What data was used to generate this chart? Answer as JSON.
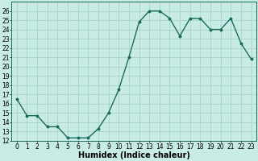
{
  "x": [
    0,
    1,
    2,
    3,
    4,
    5,
    6,
    7,
    8,
    9,
    10,
    11,
    12,
    13,
    14,
    15,
    16,
    17,
    18,
    19,
    20,
    21,
    22,
    23
  ],
  "y": [
    16.5,
    14.7,
    14.7,
    13.5,
    13.5,
    12.3,
    12.3,
    12.3,
    13.3,
    15.0,
    17.5,
    21.0,
    24.8,
    26.0,
    26.0,
    25.2,
    23.3,
    25.2,
    25.2,
    24.0,
    24.0,
    25.2,
    22.5,
    20.8
  ],
  "line_color": "#1a6b5a",
  "marker": "o",
  "markersize": 1.8,
  "linewidth": 1.0,
  "bg_color": "#c8ebe5",
  "grid_color": "#a0cfc8",
  "xlabel": "Humidex (Indice chaleur)",
  "xlabel_fontsize": 7,
  "xlabel_fontweight": "bold",
  "tick_fontsize": 5.5,
  "ylim": [
    12,
    27
  ],
  "xlim": [
    -0.5,
    23.5
  ],
  "yticks": [
    12,
    13,
    14,
    15,
    16,
    17,
    18,
    19,
    20,
    21,
    22,
    23,
    24,
    25,
    26
  ],
  "xticks": [
    0,
    1,
    2,
    3,
    4,
    5,
    6,
    7,
    8,
    9,
    10,
    11,
    12,
    13,
    14,
    15,
    16,
    17,
    18,
    19,
    20,
    21,
    22,
    23
  ]
}
